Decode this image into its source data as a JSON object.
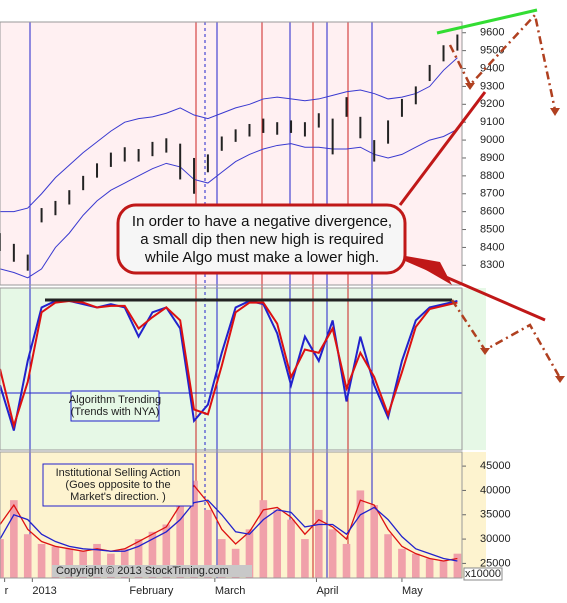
{
  "chart_data": [
    {
      "type": "range-bar",
      "x": [
        0,
        3,
        6,
        9,
        12,
        15,
        18,
        21,
        24,
        27,
        30,
        33,
        36,
        39,
        42,
        45,
        48,
        51,
        54,
        57,
        60,
        63,
        66,
        69,
        72,
        75,
        78,
        81,
        84,
        87,
        90,
        93,
        96,
        99
      ],
      "low": [
        8380,
        8320,
        8270,
        8540,
        8580,
        8640,
        8720,
        8790,
        8850,
        8880,
        8880,
        8910,
        8930,
        8780,
        8700,
        8820,
        8940,
        8990,
        9020,
        9040,
        9030,
        9040,
        9020,
        9070,
        8920,
        9130,
        9010,
        8880,
        8980,
        9130,
        9200,
        9330,
        9440,
        9500
      ],
      "high": [
        8480,
        8420,
        8360,
        8620,
        8660,
        8720,
        8800,
        8870,
        8930,
        8960,
        8950,
        8990,
        9010,
        8980,
        8900,
        8920,
        9020,
        9060,
        9090,
        9120,
        9100,
        9110,
        9100,
        9150,
        9120,
        9240,
        9130,
        9000,
        9110,
        9230,
        9300,
        9420,
        9530,
        9590
      ],
      "color": "#222222",
      "bands": [
        {
          "color": "#3a3ad0",
          "values": [
            8600,
            8600,
            8620,
            8700,
            8790,
            8860,
            8930,
            8990,
            9050,
            9100,
            9120,
            9130,
            9150,
            9180,
            9140,
            9120,
            9150,
            9180,
            9200,
            9230,
            9240,
            9230,
            9220,
            9230,
            9250,
            9270,
            9280,
            9260,
            9230,
            9240,
            9260,
            9300,
            9390,
            9460
          ]
        },
        {
          "color": "#3a3ad0",
          "values": [
            8280,
            8260,
            8230,
            8280,
            8400,
            8480,
            8580,
            8660,
            8720,
            8760,
            8800,
            8840,
            8870,
            8850,
            8780,
            8760,
            8820,
            8880,
            8920,
            8950,
            8970,
            8980,
            8960,
            8960,
            8950,
            8950,
            8960,
            8920,
            8900,
            8920,
            8960,
            9000,
            9020,
            9060
          ]
        }
      ],
      "xlim": [
        0,
        100
      ],
      "ylim": [
        8190,
        9660
      ],
      "yticks": [
        9600,
        9500,
        9400,
        9300,
        9200,
        9100,
        9000,
        8900,
        8800,
        8700,
        8600,
        8500,
        8400,
        8300
      ]
    },
    {
      "type": "line",
      "x": [
        0,
        3,
        6,
        9,
        12,
        15,
        18,
        21,
        24,
        27,
        30,
        33,
        36,
        39,
        42,
        45,
        48,
        51,
        54,
        57,
        60,
        63,
        66,
        69,
        72,
        75,
        78,
        81,
        84,
        87,
        90,
        93,
        96,
        99
      ],
      "series": [
        {
          "color": "#2222cc",
          "values": [
            40,
            12,
            55,
            88,
            92,
            92,
            90,
            88,
            90,
            88,
            70,
            85,
            88,
            75,
            18,
            28,
            60,
            88,
            92,
            90,
            72,
            40,
            70,
            55,
            80,
            30,
            70,
            40,
            20,
            55,
            80,
            88,
            90,
            92
          ]
        },
        {
          "color": "#dd1111",
          "values": [
            50,
            15,
            42,
            85,
            91,
            92,
            91,
            88,
            89,
            89,
            75,
            82,
            88,
            80,
            25,
            22,
            52,
            85,
            91,
            91,
            78,
            45,
            62,
            60,
            75,
            38,
            60,
            45,
            22,
            48,
            76,
            87,
            89,
            91
          ]
        }
      ],
      "xlim": [
        0,
        100
      ],
      "ylim": [
        0,
        100
      ],
      "annotation": [
        "Algorithm Trending",
        "(Trends with NYA)"
      ]
    },
    {
      "type": "bar-line",
      "x": [
        0,
        3,
        6,
        9,
        12,
        15,
        18,
        21,
        24,
        27,
        30,
        33,
        36,
        39,
        42,
        45,
        48,
        51,
        54,
        57,
        60,
        63,
        66,
        69,
        72,
        75,
        78,
        81,
        84,
        87,
        90,
        93,
        96,
        99
      ],
      "values": [
        30000,
        38000,
        31000,
        29000,
        28500,
        28000,
        27500,
        29000,
        27000,
        28000,
        30000,
        31500,
        33000,
        38000,
        42000,
        36000,
        30000,
        28000,
        32000,
        38000,
        36000,
        34000,
        30000,
        36000,
        32000,
        29000,
        40000,
        37000,
        31000,
        28000,
        27000,
        26000,
        25500,
        27000
      ],
      "color": "#f0a0aa",
      "series": [
        {
          "color": "#dd1111",
          "values": [
            33000,
            37000,
            32000,
            29500,
            28500,
            28000,
            27500,
            28000,
            27500,
            28000,
            29500,
            31000,
            32500,
            37000,
            41000,
            37500,
            32000,
            29000,
            31500,
            36000,
            36500,
            34500,
            31000,
            34000,
            32500,
            30000,
            38000,
            37000,
            32000,
            28500,
            27000,
            26000,
            25500,
            26000
          ]
        },
        {
          "color": "#2222cc",
          "values": [
            30000,
            35000,
            34000,
            31000,
            29500,
            28500,
            28000,
            27800,
            27500,
            27500,
            28500,
            30000,
            31500,
            34000,
            37500,
            38000,
            35000,
            31500,
            31000,
            34000,
            36000,
            35500,
            32500,
            33000,
            33000,
            31000,
            35000,
            36500,
            34000,
            30500,
            28000,
            27000,
            26000,
            25500
          ]
        }
      ],
      "xlim": [
        0,
        100
      ],
      "ylim": [
        22000,
        47900
      ],
      "yticks": [
        45000,
        40000,
        35000,
        30000,
        25000
      ],
      "xticks": [
        {
          "value": 1,
          "label": "r"
        },
        {
          "value": 7,
          "label": "2013"
        },
        {
          "value": 28,
          "label": "February"
        },
        {
          "value": 46.5,
          "label": "March"
        },
        {
          "value": 68.5,
          "label": "April"
        },
        {
          "value": 87,
          "label": "May"
        }
      ],
      "unit_label": "x10000",
      "note": "Copyright © 2013 StockTiming.com",
      "annotation": [
        "Institutional Selling Action",
        "(Goes opposite to the",
        "Market's direction. )"
      ]
    }
  ],
  "callout": [
    "In order to have a negative divergence,",
    "a small dip then new high is required",
    "while Algo must make a lower high."
  ]
}
